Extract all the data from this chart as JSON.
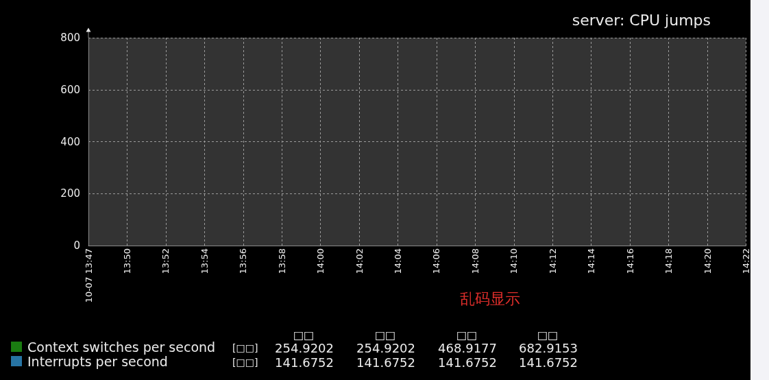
{
  "chart_data": {
    "type": "line",
    "title": "server: CPU jumps",
    "categories": [
      "10-07 13:47",
      "13:50",
      "13:52",
      "13:54",
      "13:56",
      "13:58",
      "14:00",
      "14:02",
      "14:04",
      "14:06",
      "14:08",
      "14:10",
      "14:12",
      "14:14",
      "14:16",
      "14:18",
      "14:20",
      "14:22"
    ],
    "series": [
      {
        "name": "Context switches per second",
        "color": "#1a7c11",
        "values": [
          null,
          null,
          null,
          null,
          null,
          null,
          null,
          null,
          null,
          null,
          null,
          null,
          null,
          null,
          null,
          null,
          null,
          null
        ]
      },
      {
        "name": "Interrupts per second",
        "color": "#2774a4",
        "values": [
          null,
          null,
          null,
          null,
          null,
          null,
          null,
          null,
          null,
          null,
          null,
          null,
          null,
          null,
          null,
          null,
          null,
          null
        ]
      }
    ],
    "ylim": [
      0,
      800
    ],
    "yticks": [
      0,
      200,
      400,
      600,
      800
    ],
    "grid": true,
    "legend": "bottom left",
    "annotations": [
      "乱码显示",
      "□□",
      "□□",
      "□□",
      "□□",
      "[□□]",
      "254.9202",
      "254.9202",
      "468.9177",
      "682.9153",
      "[□□]",
      "141.6752",
      "141.6752",
      "141.6752",
      "141.6752"
    ]
  }
}
